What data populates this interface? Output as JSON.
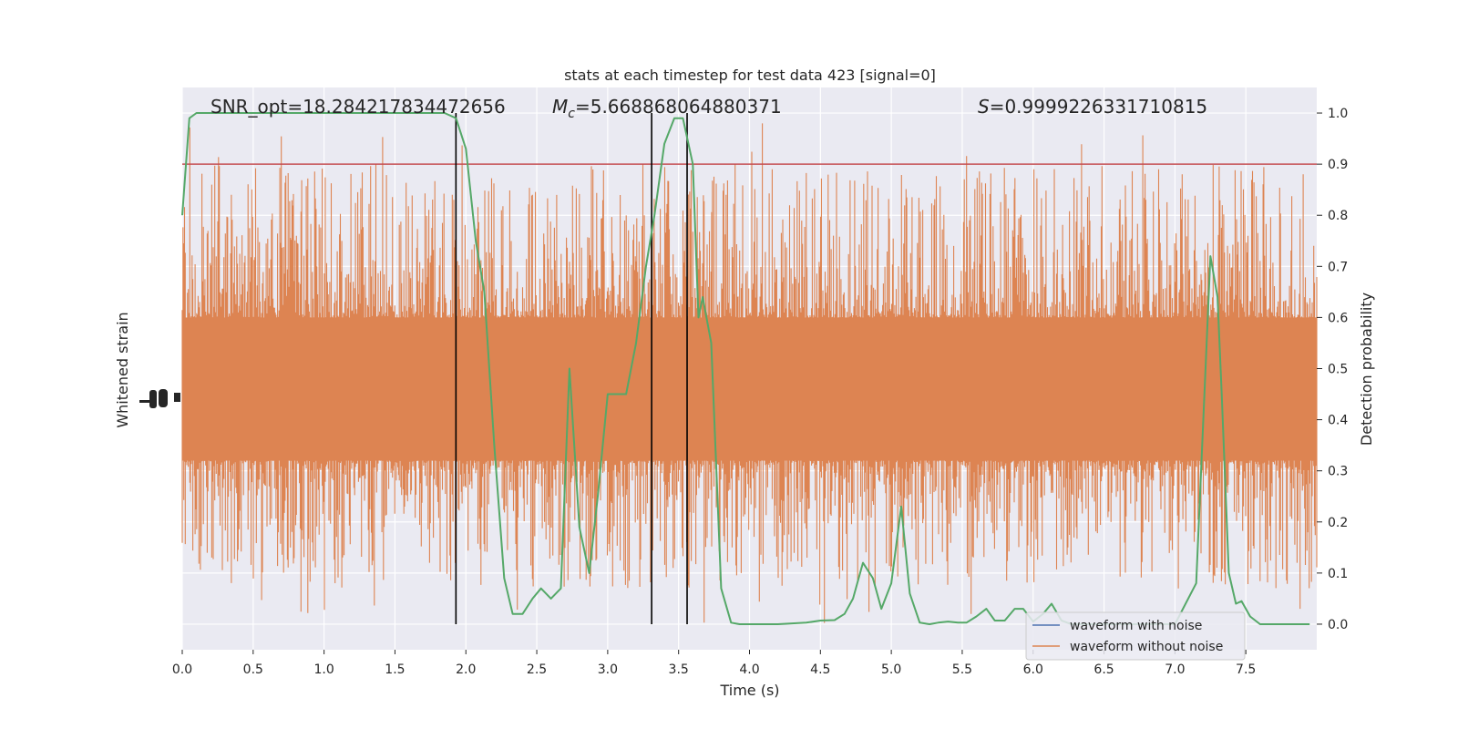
{
  "chart_data": {
    "type": "line",
    "title": "stats at each timestep for test data 423 [signal=0]",
    "xlabel": "Time (s)",
    "ylabel_left": "Whitened strain",
    "ylabel_right": "Detection probability",
    "xlim": [
      0,
      8.0
    ],
    "ylim_right": [
      -0.05,
      1.05
    ],
    "xticks": [
      "0.0",
      "0.5",
      "1.0",
      "1.5",
      "2.0",
      "2.5",
      "3.0",
      "3.5",
      "4.0",
      "4.5",
      "5.0",
      "5.5",
      "6.0",
      "6.5",
      "7.0",
      "7.5"
    ],
    "yticks_right": [
      "0.0",
      "0.1",
      "0.2",
      "0.3",
      "0.4",
      "0.5",
      "0.6",
      "0.7",
      "0.8",
      "0.9",
      "1.0"
    ],
    "grid": true,
    "annotations": {
      "snr": "SNR_opt=18.284217834472656",
      "mc_symbol": "M",
      "mc_sub": "c",
      "mc_value": "=5.668868064880371",
      "s_symbol": "S",
      "s_value": "=0.9999226331710815"
    },
    "threshold": {
      "y": 0.9,
      "color": "#c44e52"
    },
    "vlines": [
      1.93,
      3.31,
      3.56
    ],
    "legend": {
      "position": "lower right",
      "entries": [
        {
          "label": "waveform with noise",
          "color": "#4c72b0"
        },
        {
          "label": "waveform without noise",
          "color": "#dd8452"
        }
      ]
    },
    "series": [
      {
        "color": "#55a868",
        "x": [
          0.0,
          0.05,
          0.1,
          0.15,
          0.2,
          0.3,
          0.5,
          0.7,
          0.9,
          1.1,
          1.3,
          1.5,
          1.7,
          1.85,
          1.93,
          2.0,
          2.07,
          2.13,
          2.2,
          2.27,
          2.33,
          2.4,
          2.47,
          2.53,
          2.6,
          2.67,
          2.73,
          2.8,
          2.87,
          2.93,
          3.0,
          3.07,
          3.13,
          3.2,
          3.27,
          3.33,
          3.4,
          3.47,
          3.53,
          3.6,
          3.64,
          3.67,
          3.73,
          3.8,
          3.87,
          3.93,
          4.0,
          4.2,
          4.4,
          4.5,
          4.6,
          4.67,
          4.73,
          4.8,
          4.87,
          4.93,
          5.0,
          5.07,
          5.13,
          5.2,
          5.27,
          5.33,
          5.4,
          5.47,
          5.53,
          5.6,
          5.67,
          5.73,
          5.8,
          5.87,
          5.93,
          6.0,
          6.07,
          6.13,
          6.2,
          6.27,
          6.4,
          6.6,
          6.8,
          7.0,
          7.15,
          7.2,
          7.25,
          7.3,
          7.33,
          7.38,
          7.43,
          7.47,
          7.53,
          7.6,
          7.7,
          7.85,
          7.95
        ],
        "values": [
          0.8,
          0.99,
          1.0,
          1.0,
          1.0,
          1.0,
          1.0,
          1.0,
          1.0,
          1.0,
          1.0,
          1.0,
          1.0,
          1.0,
          0.99,
          0.93,
          0.75,
          0.65,
          0.35,
          0.09,
          0.02,
          0.02,
          0.05,
          0.07,
          0.05,
          0.07,
          0.5,
          0.19,
          0.1,
          0.25,
          0.45,
          0.45,
          0.45,
          0.55,
          0.7,
          0.8,
          0.94,
          0.99,
          0.99,
          0.9,
          0.6,
          0.64,
          0.55,
          0.07,
          0.003,
          0.0,
          0.0,
          0.0,
          0.003,
          0.007,
          0.008,
          0.02,
          0.05,
          0.12,
          0.09,
          0.03,
          0.08,
          0.23,
          0.06,
          0.003,
          0.0,
          0.003,
          0.005,
          0.003,
          0.003,
          0.015,
          0.03,
          0.007,
          0.007,
          0.03,
          0.03,
          0.005,
          0.02,
          0.04,
          0.007,
          0.0,
          0.0,
          0.0,
          0.0,
          0.0,
          0.08,
          0.4,
          0.72,
          0.64,
          0.45,
          0.1,
          0.04,
          0.045,
          0.015,
          0.0,
          0.0,
          0.0,
          0.0
        ]
      }
    ]
  }
}
